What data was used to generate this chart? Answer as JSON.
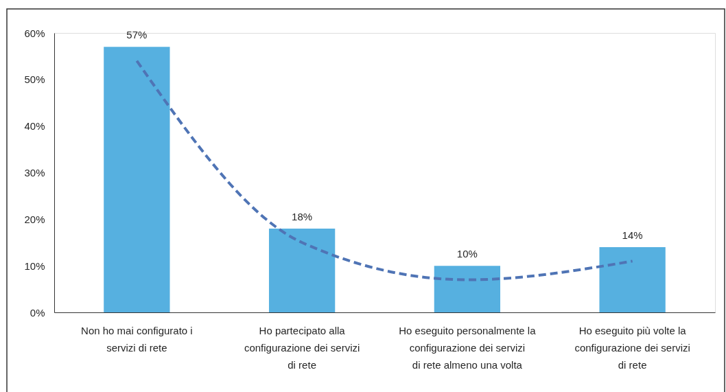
{
  "chart_data": {
    "type": "bar",
    "categories": [
      "Non ho mai configurato i servizi di rete",
      "Ho partecipato alla configurazione dei servizi di rete",
      "Ho eseguito personalmente la configurazione dei servizi di rete almeno una volta",
      "Ho eseguito più volte la configurazione dei servizi di rete"
    ],
    "series": [
      {
        "color": "#56b0e0",
        "values": [
          57,
          18,
          10,
          14
        ],
        "value_labels": [
          "57%",
          "18%",
          "10%",
          "14%"
        ]
      },
      {
        "type": "line",
        "color": "#4f74b5",
        "values": [
          54,
          15,
          7,
          11
        ],
        "line_style": "dashed"
      }
    ],
    "ylim": [
      0,
      60
    ],
    "yticks": [
      {
        "value": 0,
        "label": "0%"
      },
      {
        "value": 10,
        "label": "10%"
      },
      {
        "value": 20,
        "label": "20%"
      },
      {
        "value": 30,
        "label": "30%"
      },
      {
        "value": 40,
        "label": "40%"
      },
      {
        "value": 50,
        "label": "50%"
      },
      {
        "value": 60,
        "label": "60%"
      }
    ],
    "grid": false
  }
}
